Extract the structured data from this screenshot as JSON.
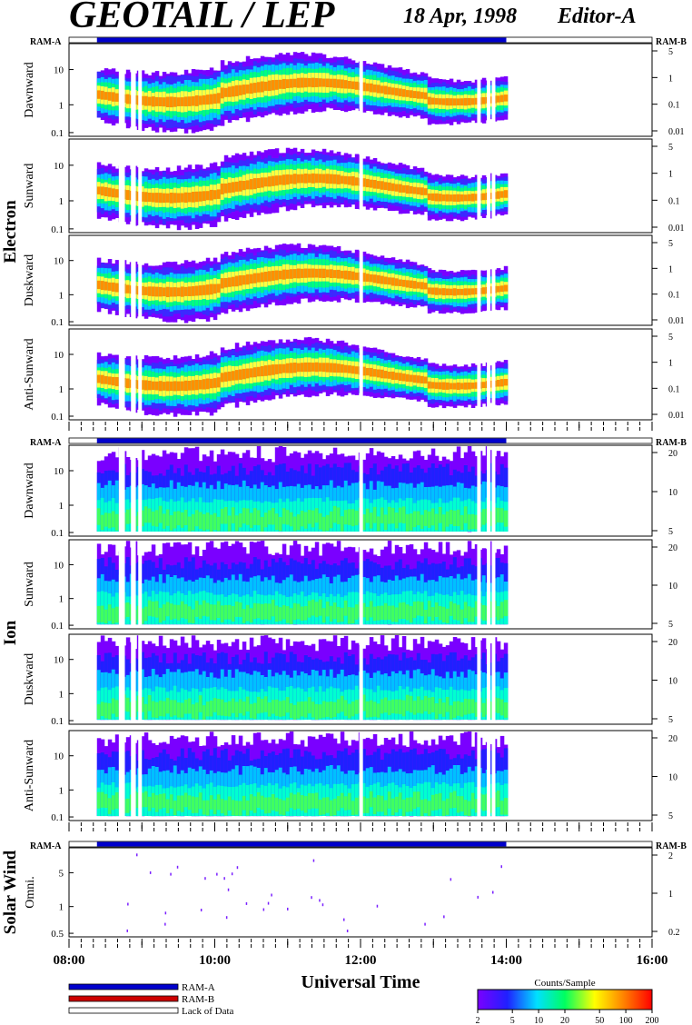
{
  "header": {
    "title": "GEOTAIL / LEP",
    "date": "18 Apr, 1998",
    "editor": "Editor-A"
  },
  "ram": {
    "a": "RAM-A",
    "b": "RAM-B"
  },
  "groups": [
    {
      "label": "Electron",
      "colorscheme": "electron",
      "panels": [
        {
          "label": "Dawnward"
        },
        {
          "label": "Sunward"
        },
        {
          "label": "Duskward"
        },
        {
          "label": "Anti-Sunward"
        }
      ],
      "left_ticks": [
        "10",
        "1",
        "0.1"
      ],
      "right_ticks": [
        "5",
        "1",
        "0.1",
        "0.01"
      ]
    },
    {
      "label": "Ion",
      "colorscheme": "ion",
      "panels": [
        {
          "label": "Dawnward"
        },
        {
          "label": "Sunward"
        },
        {
          "label": "Duskward"
        },
        {
          "label": "Anti-Sunward"
        }
      ],
      "left_ticks": [
        "10",
        "1",
        "0.1"
      ],
      "right_ticks": [
        "20",
        "10",
        "5"
      ]
    },
    {
      "label": "Solar Wind",
      "colorscheme": "sw",
      "panels": [
        {
          "label": "Omni."
        }
      ],
      "left_ticks": [
        "5",
        "1",
        "0.5"
      ],
      "right_ticks": [
        "2",
        "1",
        "0.2"
      ]
    }
  ],
  "chart_data": {
    "type": "heatmap",
    "xlabel": "Universal Time",
    "x_ticks": [
      "08:00",
      "10:00",
      "12:00",
      "14:00",
      "16:00"
    ],
    "xlim": [
      "08:00",
      "16:00"
    ],
    "data_coverage": {
      "start": "08:23",
      "end": "14:00"
    },
    "data_gaps": [
      "08:41",
      "08:43",
      "08:51",
      "08:52",
      "08:57",
      "11:59",
      "13:36",
      "13:44",
      "13:48"
    ],
    "colorbar": {
      "label": "Counts/Sample",
      "ticks": [
        "2",
        "5",
        "10",
        "20",
        "50",
        "100",
        "200"
      ],
      "range": [
        2,
        200
      ],
      "scale": "log",
      "colors": [
        "#7a00ff",
        "#2020ff",
        "#00e0ff",
        "#00ff60",
        "#ffff00",
        "#ff8000",
        "#ff0000"
      ]
    },
    "legend": [
      {
        "label": "RAM-A",
        "color": "#0000cc"
      },
      {
        "label": "RAM-B",
        "color": "#cc0000"
      },
      {
        "label": "Lack of Data",
        "color": "#ffffff"
      }
    ]
  }
}
